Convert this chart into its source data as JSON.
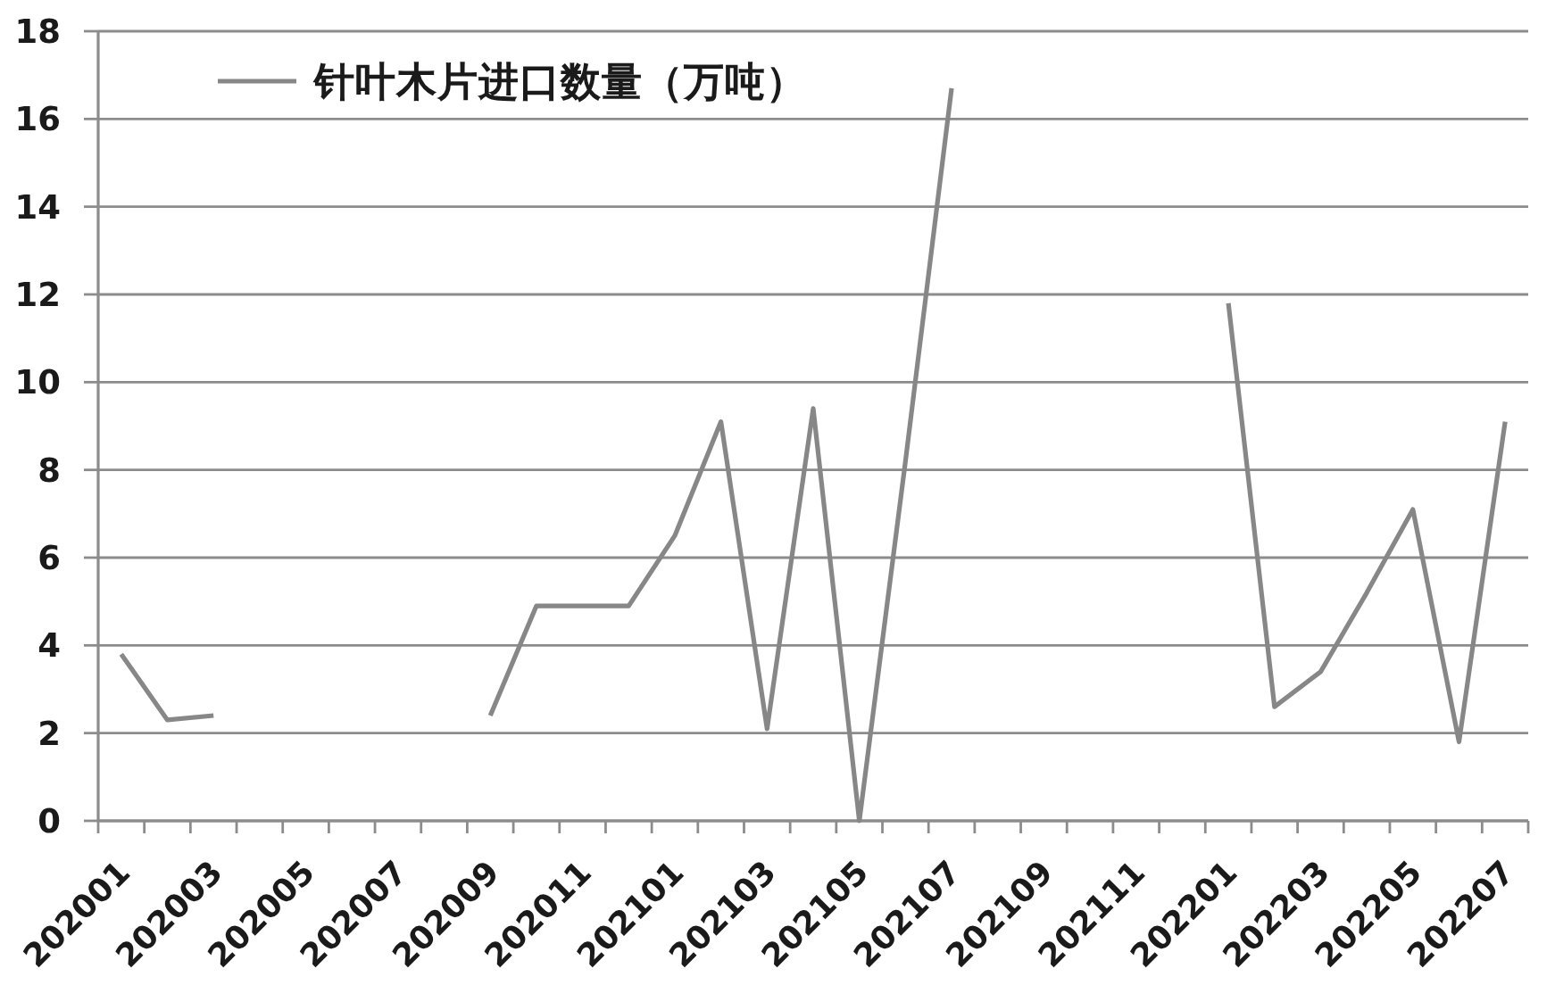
{
  "chart_data": {
    "type": "line",
    "categories": [
      "202001",
      null,
      "202003",
      null,
      "202005",
      null,
      "202007",
      null,
      "202009",
      null,
      "202011",
      null,
      "202101",
      null,
      "202103",
      null,
      "202105",
      null,
      "202107",
      null,
      "202109",
      null,
      "202111",
      null,
      "202201",
      null,
      "202203",
      null,
      "202205",
      null,
      "202207"
    ],
    "series": [
      {
        "name": "针叶木片进口数量（万吨）",
        "color": "#878787",
        "values": [
          3.8,
          2.3,
          2.4,
          null,
          null,
          null,
          null,
          null,
          2.4,
          4.9,
          4.9,
          4.9,
          6.5,
          9.1,
          2.1,
          9.4,
          0,
          8.2,
          16.7,
          null,
          null,
          null,
          null,
          null,
          11.8,
          2.6,
          3.4,
          5.2,
          7.1,
          1.8,
          9.1
        ]
      }
    ],
    "ylim": [
      0,
      18
    ],
    "yticks": [
      0,
      2,
      4,
      6,
      8,
      10,
      12,
      14,
      16,
      18
    ],
    "grid": "y",
    "legend": "top left",
    "line_style": "solid"
  }
}
